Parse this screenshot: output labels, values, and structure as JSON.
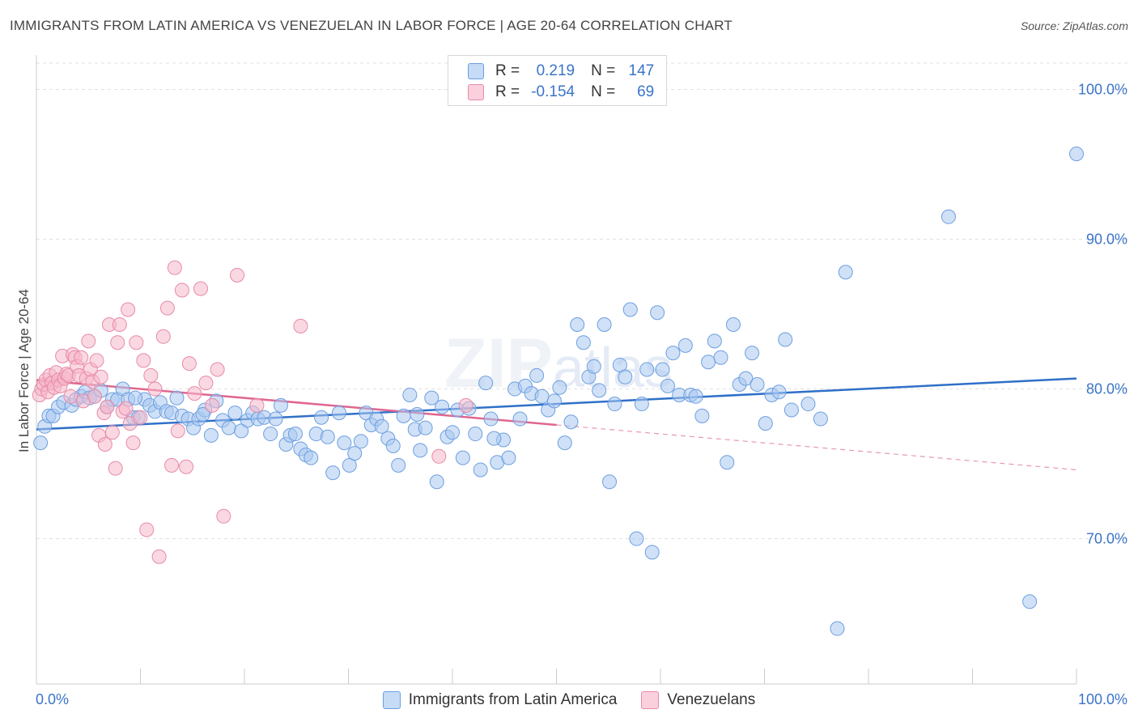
{
  "title": "IMMIGRANTS FROM LATIN AMERICA VS VENEZUELAN IN LABOR FORCE | AGE 20-64 CORRELATION CHART",
  "source": "Source: ZipAtlas.com",
  "legend": {
    "rows": [
      {
        "r_label": "R =",
        "r_value": "0.219",
        "n_label": "N =",
        "n_value": "147",
        "color": "#a9c8f0"
      },
      {
        "r_label": "R =",
        "r_value": "-0.154",
        "n_label": "N =",
        "n_value": "69",
        "color": "#f6b8ca"
      }
    ]
  },
  "bottom_legend": [
    {
      "label": "Immigrants from Latin America",
      "color": "#a9c8f0"
    },
    {
      "label": "Venezuelans",
      "color": "#f6b8ca"
    }
  ],
  "chart_data": {
    "type": "scatter",
    "title": "IMMIGRANTS FROM LATIN AMERICA VS VENEZUELAN IN LABOR FORCE | AGE 20-64 CORRELATION CHART",
    "xlabel": "",
    "ylabel": "In Labor Force | Age 20-64",
    "xlim": [
      0,
      100
    ],
    "ylim": [
      60.3,
      102.3
    ],
    "x_tick_labels": [
      "0.0%",
      "100.0%"
    ],
    "y_ticks": [
      100,
      90,
      80,
      70
    ],
    "y_tick_labels": [
      "100.0%",
      "90.0%",
      "80.0%",
      "70.0%"
    ],
    "grid": true,
    "legend_position": "top-center",
    "watermark": "ZIPatlas",
    "series": [
      {
        "name": "Immigrants from Latin America",
        "color": "#a9c8f0",
        "stroke": "#6d9fe0",
        "trend": {
          "x": [
            0,
            100
          ],
          "y": [
            77.3,
            80.7
          ],
          "color": "#2f70c8"
        },
        "points": [
          [
            0.4,
            76.4
          ],
          [
            0.8,
            77.5
          ],
          [
            1.2,
            78.2
          ],
          [
            1.6,
            78.2
          ],
          [
            2.1,
            78.8
          ],
          [
            2.6,
            79.1
          ],
          [
            3.4,
            78.9
          ],
          [
            3.8,
            79.3
          ],
          [
            4.3,
            79.5
          ],
          [
            4.7,
            79.8
          ],
          [
            5.1,
            79.4
          ],
          [
            5.6,
            79.5
          ],
          [
            6.2,
            79.9
          ],
          [
            6.8,
            78.8
          ],
          [
            7.3,
            79.3
          ],
          [
            7.8,
            79.3
          ],
          [
            8.3,
            80.0
          ],
          [
            8.8,
            79.3
          ],
          [
            9.3,
            78.1
          ],
          [
            9.8,
            78.1
          ],
          [
            10.4,
            79.3
          ],
          [
            10.9,
            78.9
          ],
          [
            11.4,
            78.5
          ],
          [
            11.9,
            79.1
          ],
          [
            12.5,
            78.5
          ],
          [
            13.0,
            78.4
          ],
          [
            13.5,
            79.4
          ],
          [
            14.0,
            78.2
          ],
          [
            14.6,
            78.0
          ],
          [
            15.1,
            77.4
          ],
          [
            15.6,
            78.0
          ],
          [
            16.2,
            78.6
          ],
          [
            16.8,
            76.9
          ],
          [
            17.3,
            79.2
          ],
          [
            17.9,
            77.9
          ],
          [
            18.5,
            77.4
          ],
          [
            19.1,
            78.4
          ],
          [
            19.7,
            77.2
          ],
          [
            20.3,
            77.9
          ],
          [
            20.8,
            78.4
          ],
          [
            21.3,
            78.0
          ],
          [
            21.9,
            78.1
          ],
          [
            22.5,
            77.0
          ],
          [
            23.0,
            78.0
          ],
          [
            23.5,
            78.9
          ],
          [
            24.0,
            76.3
          ],
          [
            24.4,
            76.9
          ],
          [
            24.9,
            77.0
          ],
          [
            25.4,
            76.0
          ],
          [
            25.9,
            75.6
          ],
          [
            26.4,
            75.4
          ],
          [
            26.9,
            77.0
          ],
          [
            27.4,
            78.1
          ],
          [
            28.0,
            76.8
          ],
          [
            28.5,
            74.4
          ],
          [
            29.1,
            78.4
          ],
          [
            29.6,
            76.4
          ],
          [
            30.1,
            74.9
          ],
          [
            30.6,
            75.7
          ],
          [
            31.2,
            76.5
          ],
          [
            31.7,
            78.4
          ],
          [
            32.2,
            77.6
          ],
          [
            32.7,
            78.0
          ],
          [
            33.2,
            77.5
          ],
          [
            33.8,
            76.7
          ],
          [
            34.3,
            76.2
          ],
          [
            34.8,
            74.9
          ],
          [
            35.3,
            78.2
          ],
          [
            35.9,
            79.6
          ],
          [
            36.4,
            77.3
          ],
          [
            36.9,
            75.9
          ],
          [
            37.4,
            77.4
          ],
          [
            38.0,
            79.4
          ],
          [
            38.5,
            73.8
          ],
          [
            39.0,
            78.8
          ],
          [
            39.5,
            76.8
          ],
          [
            40.0,
            77.1
          ],
          [
            40.5,
            78.6
          ],
          [
            41.0,
            75.4
          ],
          [
            41.6,
            78.7
          ],
          [
            42.2,
            77.0
          ],
          [
            42.7,
            74.6
          ],
          [
            43.2,
            80.4
          ],
          [
            43.7,
            78.0
          ],
          [
            44.3,
            75.1
          ],
          [
            44.9,
            76.6
          ],
          [
            45.4,
            75.4
          ],
          [
            46.0,
            80.0
          ],
          [
            46.5,
            78.0
          ],
          [
            47.0,
            80.2
          ],
          [
            47.6,
            79.7
          ],
          [
            48.1,
            80.9
          ],
          [
            48.6,
            79.5
          ],
          [
            49.2,
            78.6
          ],
          [
            49.8,
            79.2
          ],
          [
            50.3,
            80.1
          ],
          [
            50.8,
            76.4
          ],
          [
            51.4,
            77.8
          ],
          [
            52.0,
            84.3
          ],
          [
            52.6,
            83.1
          ],
          [
            53.1,
            80.8
          ],
          [
            53.6,
            81.5
          ],
          [
            54.1,
            79.9
          ],
          [
            54.6,
            84.3
          ],
          [
            55.1,
            73.8
          ],
          [
            55.6,
            79.0
          ],
          [
            56.1,
            81.6
          ],
          [
            56.6,
            80.8
          ],
          [
            57.1,
            85.3
          ],
          [
            57.7,
            70.0
          ],
          [
            58.2,
            79.0
          ],
          [
            58.7,
            81.3
          ],
          [
            59.2,
            69.1
          ],
          [
            59.7,
            85.1
          ],
          [
            60.2,
            81.3
          ],
          [
            60.7,
            80.2
          ],
          [
            61.2,
            82.4
          ],
          [
            61.8,
            79.6
          ],
          [
            62.4,
            82.9
          ],
          [
            62.9,
            79.6
          ],
          [
            63.4,
            79.5
          ],
          [
            64.0,
            78.2
          ],
          [
            64.6,
            81.8
          ],
          [
            65.2,
            83.2
          ],
          [
            65.8,
            82.1
          ],
          [
            66.4,
            75.1
          ],
          [
            67.0,
            84.3
          ],
          [
            67.6,
            80.3
          ],
          [
            68.2,
            80.7
          ],
          [
            68.8,
            82.4
          ],
          [
            69.3,
            80.3
          ],
          [
            70.1,
            77.7
          ],
          [
            70.7,
            79.6
          ],
          [
            71.4,
            79.8
          ],
          [
            72.0,
            83.3
          ],
          [
            72.6,
            78.6
          ],
          [
            74.2,
            79.0
          ],
          [
            75.4,
            78.0
          ],
          [
            77.0,
            64.0
          ],
          [
            77.8,
            87.8
          ],
          [
            87.7,
            91.5
          ],
          [
            95.5,
            65.8
          ],
          [
            100.0,
            95.7
          ],
          [
            36.6,
            78.3
          ],
          [
            44.0,
            76.7
          ],
          [
            16.0,
            78.3
          ],
          [
            9.5,
            79.4
          ]
        ]
      },
      {
        "name": "Venezuelans",
        "color": "#f6b8ca",
        "stroke": "#e88aa8",
        "trend": {
          "x": [
            0,
            50
          ],
          "y": [
            80.6,
            77.6
          ],
          "color": "#e06690"
        },
        "trend_extension": {
          "x": [
            50,
            100
          ],
          "y": [
            77.6,
            74.6
          ],
          "color": "#e897b2"
        },
        "points": [
          [
            0.3,
            79.6
          ],
          [
            0.5,
            80.0
          ],
          [
            0.7,
            80.3
          ],
          [
            0.9,
            80.6
          ],
          [
            1.1,
            79.8
          ],
          [
            1.3,
            80.9
          ],
          [
            1.5,
            80.4
          ],
          [
            1.7,
            80.1
          ],
          [
            1.9,
            81.1
          ],
          [
            2.1,
            80.6
          ],
          [
            2.3,
            80.2
          ],
          [
            2.5,
            82.2
          ],
          [
            2.7,
            80.7
          ],
          [
            2.9,
            81.0
          ],
          [
            3.1,
            80.9
          ],
          [
            3.3,
            79.5
          ],
          [
            3.5,
            82.3
          ],
          [
            3.7,
            82.1
          ],
          [
            3.9,
            81.5
          ],
          [
            4.1,
            80.9
          ],
          [
            4.3,
            82.1
          ],
          [
            4.5,
            79.2
          ],
          [
            4.8,
            80.7
          ],
          [
            5.0,
            83.2
          ],
          [
            5.2,
            81.3
          ],
          [
            5.4,
            80.5
          ],
          [
            5.6,
            79.5
          ],
          [
            5.8,
            81.9
          ],
          [
            6.0,
            76.9
          ],
          [
            6.2,
            80.8
          ],
          [
            6.5,
            78.4
          ],
          [
            6.6,
            76.3
          ],
          [
            6.8,
            78.8
          ],
          [
            7.0,
            84.3
          ],
          [
            7.3,
            77.1
          ],
          [
            7.6,
            74.7
          ],
          [
            7.8,
            83.1
          ],
          [
            8.0,
            84.3
          ],
          [
            8.3,
            78.5
          ],
          [
            8.6,
            78.7
          ],
          [
            8.8,
            85.3
          ],
          [
            9.0,
            77.7
          ],
          [
            9.3,
            76.4
          ],
          [
            9.6,
            83.1
          ],
          [
            10.0,
            78.1
          ],
          [
            10.3,
            81.9
          ],
          [
            10.6,
            70.6
          ],
          [
            11.0,
            80.9
          ],
          [
            11.4,
            80.0
          ],
          [
            11.8,
            68.8
          ],
          [
            12.2,
            83.5
          ],
          [
            12.6,
            85.4
          ],
          [
            13.0,
            74.9
          ],
          [
            13.3,
            88.1
          ],
          [
            13.6,
            77.2
          ],
          [
            14.0,
            86.6
          ],
          [
            14.4,
            74.8
          ],
          [
            14.7,
            81.7
          ],
          [
            15.2,
            79.7
          ],
          [
            15.8,
            86.7
          ],
          [
            16.3,
            80.4
          ],
          [
            16.9,
            78.9
          ],
          [
            17.4,
            81.3
          ],
          [
            18.0,
            71.5
          ],
          [
            19.3,
            87.6
          ],
          [
            21.2,
            78.9
          ],
          [
            25.4,
            84.2
          ],
          [
            38.7,
            75.5
          ],
          [
            41.3,
            78.9
          ]
        ]
      }
    ]
  }
}
